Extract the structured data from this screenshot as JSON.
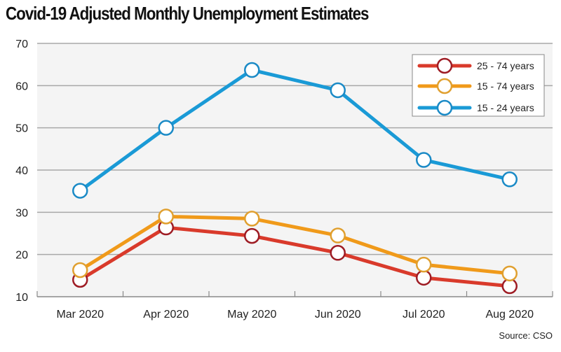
{
  "chart_data": {
    "type": "line",
    "title": "Covid-19 Adjusted Monthly Unemployment Estimates",
    "xlabel": "",
    "ylabel": "",
    "categories": [
      "Mar 2020",
      "Apr 2020",
      "May 2020",
      "Jun 2020",
      "Jul 2020",
      "Aug 2020"
    ],
    "ylim": [
      10,
      70
    ],
    "yticks": [
      10,
      20,
      30,
      40,
      50,
      60,
      70
    ],
    "grid": true,
    "legend_position": "top-right",
    "series": [
      {
        "name": "25 - 74 years",
        "color": "#d93a2b",
        "marker_edge": "#9e1c24",
        "values": [
          14.0,
          26.4,
          24.4,
          20.4,
          14.5,
          12.5
        ]
      },
      {
        "name": "15 - 74 years",
        "color": "#f09a1a",
        "marker_edge": "#e0a030",
        "values": [
          16.3,
          29.0,
          28.5,
          24.5,
          17.6,
          15.5
        ]
      },
      {
        "name": "15 - 24 years",
        "color": "#1a9ad6",
        "marker_edge": "#1a8ac6",
        "values": [
          35.1,
          50.0,
          63.7,
          58.9,
          42.4,
          37.8
        ]
      }
    ],
    "source": "Source: CSO"
  }
}
